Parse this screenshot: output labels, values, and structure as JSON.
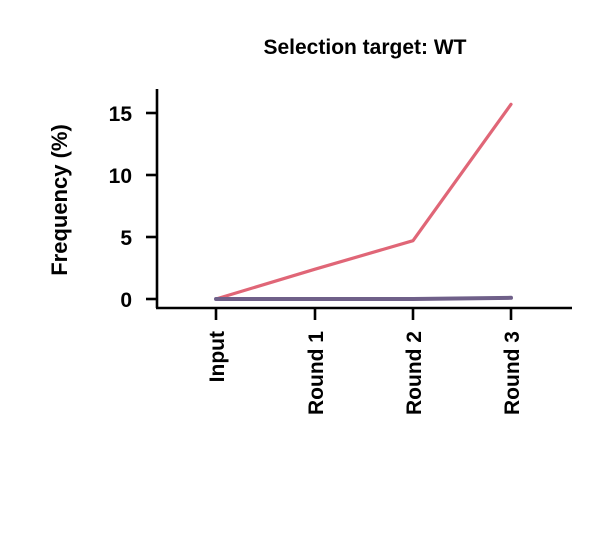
{
  "chart_data": {
    "type": "line",
    "title": "Selection target: WT",
    "xlabel": "",
    "ylabel": "Frequency (%)",
    "categories": [
      "Input",
      "Round 1",
      "Round 2",
      "Round 3"
    ],
    "yticks": [
      0,
      5,
      10,
      15
    ],
    "ylim": [
      -0.8,
      17
    ],
    "grid": false,
    "series": [
      {
        "values": [
          0,
          2.4,
          4.7,
          15.7
        ],
        "color": "#e06677"
      },
      {
        "values": [
          0,
          0,
          0,
          0.1
        ],
        "color": "#6f6089"
      }
    ]
  }
}
